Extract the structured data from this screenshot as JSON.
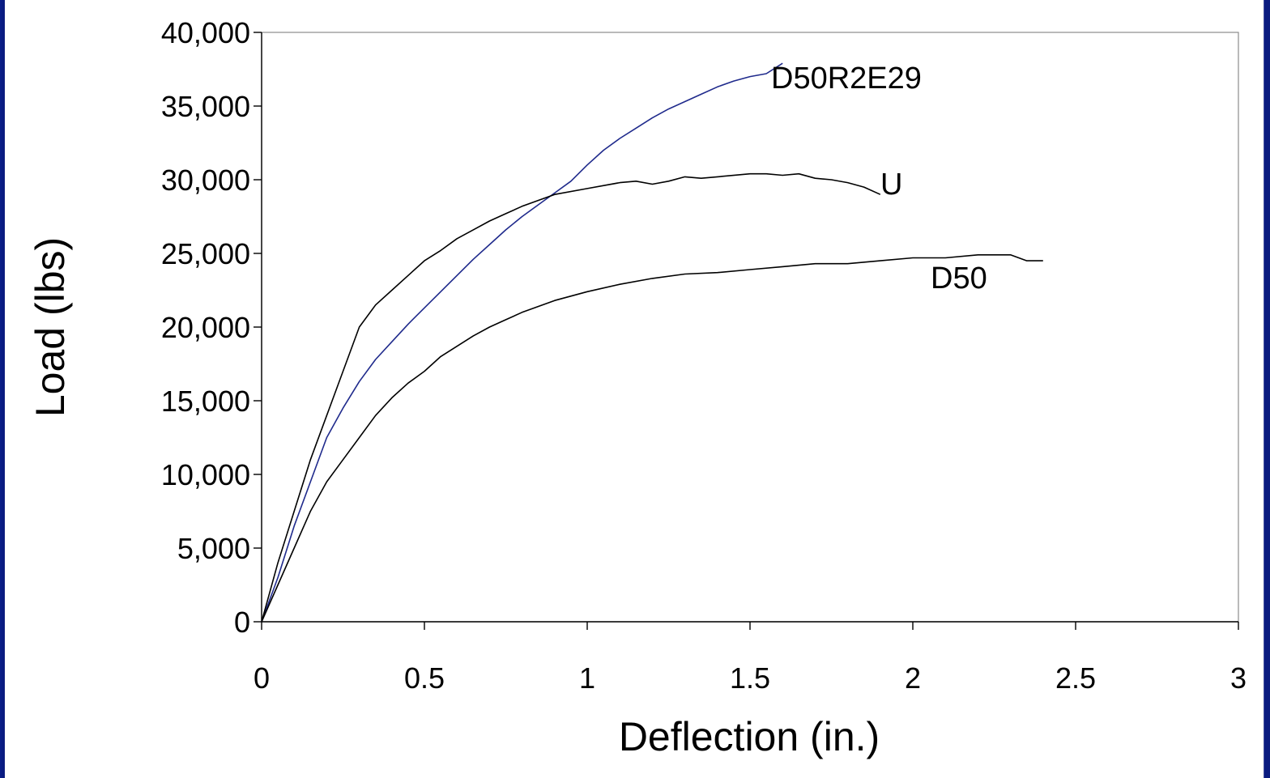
{
  "chart_data": {
    "type": "line",
    "title": "",
    "xlabel": "Deflection (in.)",
    "ylabel": "Load (lbs)",
    "xlim": [
      0,
      3
    ],
    "ylim": [
      0,
      40000
    ],
    "x_ticks": [
      0,
      0.5,
      1,
      1.5,
      2,
      2.5,
      3
    ],
    "x_tick_labels": [
      "0",
      "0.5",
      "1",
      "1.5",
      "2",
      "2.5",
      "3"
    ],
    "y_ticks": [
      0,
      5000,
      10000,
      15000,
      20000,
      25000,
      30000,
      35000,
      40000
    ],
    "y_tick_labels": [
      "0",
      "5,000",
      "10,000",
      "15,000",
      "20,000",
      "25,000",
      "30,000",
      "35,000",
      "40,000"
    ],
    "grid": false,
    "legend": "none (series labeled inline)",
    "series": [
      {
        "name": "D50R2E29",
        "color": "#1f2a8c",
        "x": [
          0,
          0.05,
          0.1,
          0.15,
          0.2,
          0.25,
          0.3,
          0.35,
          0.4,
          0.45,
          0.5,
          0.55,
          0.6,
          0.65,
          0.7,
          0.75,
          0.8,
          0.85,
          0.9,
          0.95,
          1.0,
          1.05,
          1.1,
          1.15,
          1.2,
          1.25,
          1.3,
          1.35,
          1.4,
          1.45,
          1.5,
          1.55,
          1.6
        ],
        "y": [
          0,
          3000,
          6500,
          9500,
          12500,
          14500,
          16300,
          17800,
          19000,
          20200,
          21300,
          22400,
          23500,
          24600,
          25600,
          26600,
          27500,
          28300,
          29100,
          29900,
          31000,
          32000,
          32800,
          33500,
          34200,
          34800,
          35300,
          35800,
          36300,
          36700,
          37000,
          37200,
          37900
        ]
      },
      {
        "name": "U",
        "color": "#000000",
        "x": [
          0,
          0.05,
          0.1,
          0.15,
          0.2,
          0.25,
          0.3,
          0.35,
          0.4,
          0.45,
          0.5,
          0.55,
          0.6,
          0.65,
          0.7,
          0.75,
          0.8,
          0.85,
          0.9,
          1.0,
          1.1,
          1.15,
          1.2,
          1.25,
          1.3,
          1.35,
          1.4,
          1.5,
          1.55,
          1.6,
          1.65,
          1.7,
          1.75,
          1.8,
          1.85,
          1.9
        ],
        "y": [
          0,
          4000,
          7500,
          11000,
          14000,
          17000,
          20000,
          21500,
          22500,
          23500,
          24500,
          25200,
          26000,
          26600,
          27200,
          27700,
          28200,
          28600,
          29000,
          29400,
          29800,
          29900,
          29700,
          29900,
          30200,
          30100,
          30200,
          30400,
          30400,
          30300,
          30400,
          30100,
          30000,
          29800,
          29500,
          29000
        ]
      },
      {
        "name": "D50",
        "color": "#000000",
        "x": [
          0,
          0.05,
          0.1,
          0.15,
          0.2,
          0.25,
          0.3,
          0.35,
          0.4,
          0.45,
          0.5,
          0.55,
          0.6,
          0.65,
          0.7,
          0.75,
          0.8,
          0.85,
          0.9,
          1.0,
          1.1,
          1.2,
          1.3,
          1.4,
          1.5,
          1.6,
          1.7,
          1.8,
          1.9,
          2.0,
          2.1,
          2.2,
          2.3,
          2.35,
          2.4
        ],
        "y": [
          0,
          2500,
          5000,
          7500,
          9500,
          11000,
          12500,
          14000,
          15200,
          16200,
          17000,
          18000,
          18700,
          19400,
          20000,
          20500,
          21000,
          21400,
          21800,
          22400,
          22900,
          23300,
          23600,
          23700,
          23900,
          24100,
          24300,
          24300,
          24500,
          24700,
          24700,
          24900,
          24900,
          24500,
          24500
        ]
      }
    ],
    "annotations": [
      {
        "text": "D50R2E29",
        "series": "D50R2E29"
      },
      {
        "text": "U",
        "series": "U"
      },
      {
        "text": "D50",
        "series": "D50"
      }
    ]
  }
}
